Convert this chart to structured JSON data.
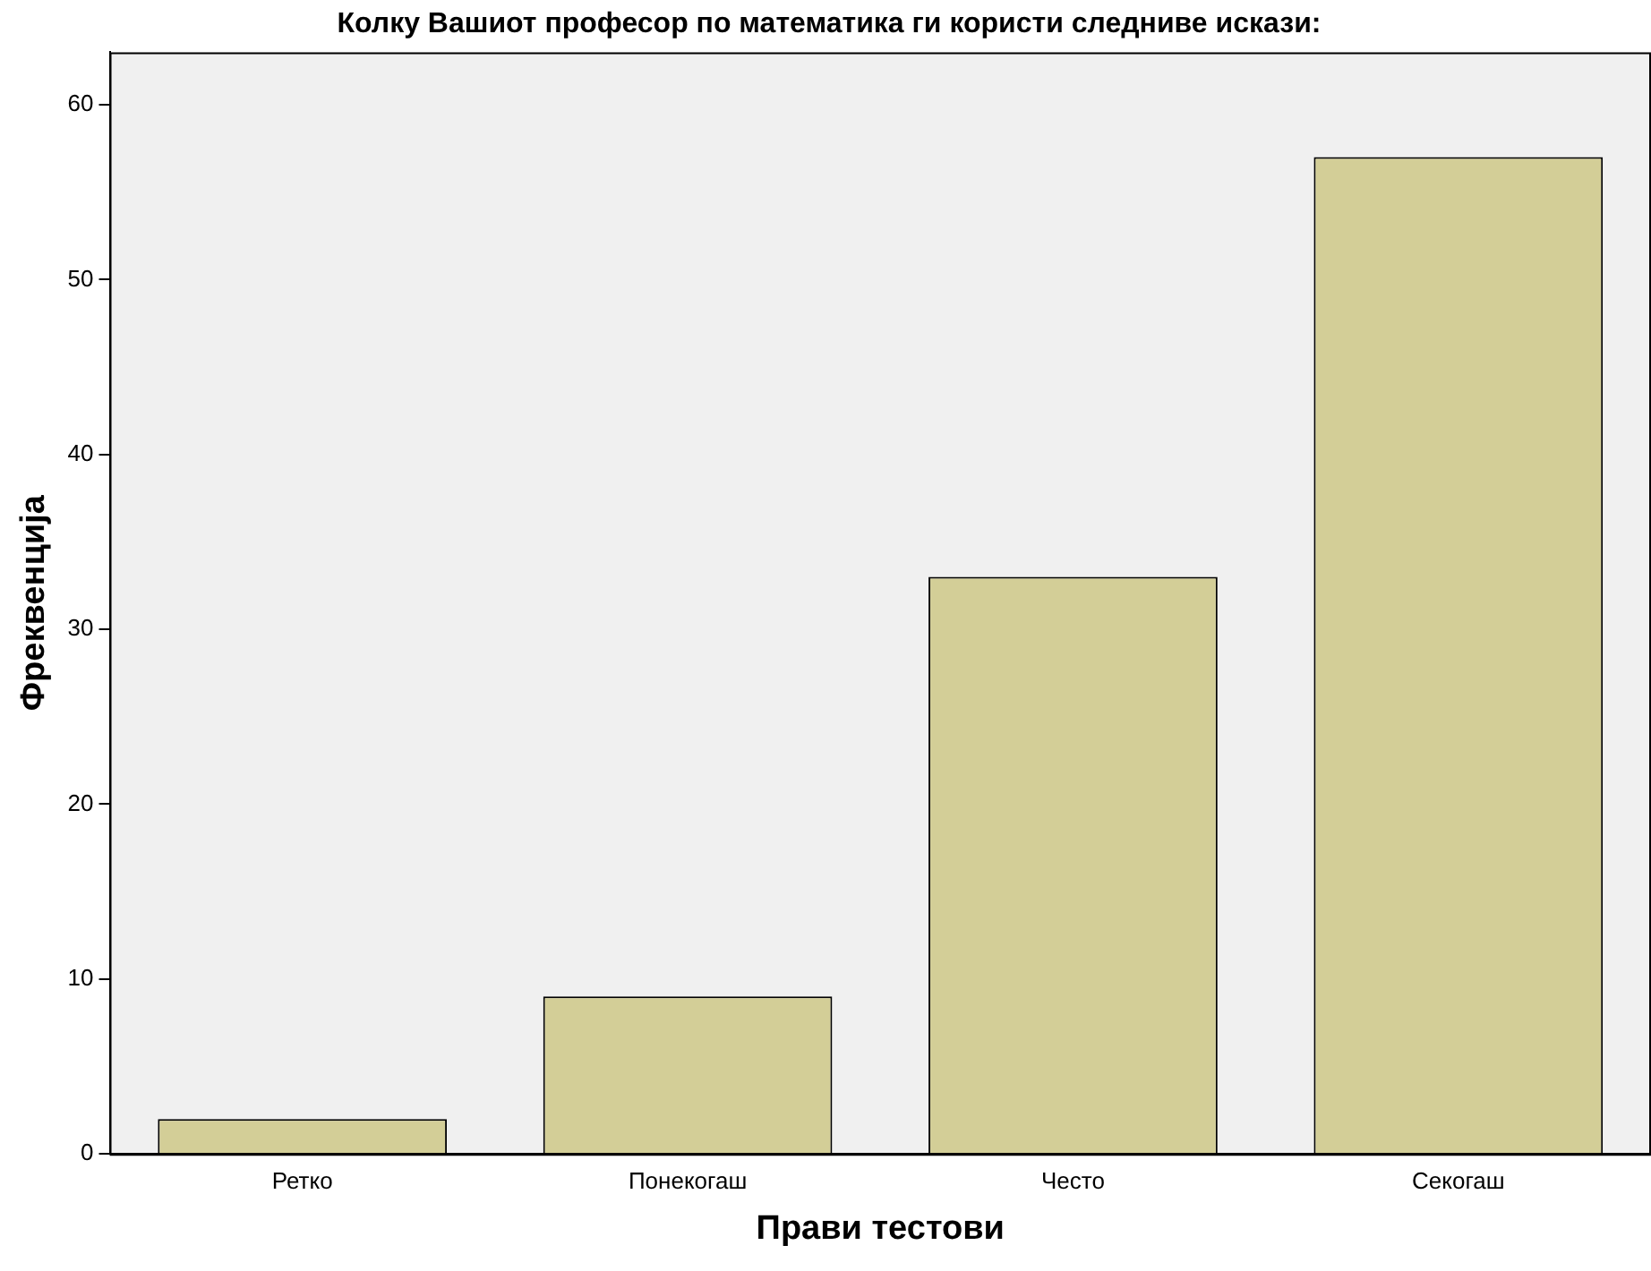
{
  "chart_data": {
    "type": "bar",
    "title": "Колку Вашиот професор по математика ги користи следниве искази:",
    "xlabel": "Прави тестови",
    "ylabel": "Фреквенција",
    "categories": [
      "Ретко",
      "Понекогаш",
      "Често",
      "Секогаш"
    ],
    "values": [
      2,
      9,
      33,
      57
    ],
    "color": "#d3ce97",
    "ylim": [
      0,
      63
    ],
    "yticks": [
      0,
      10,
      20,
      30,
      40,
      50,
      60
    ],
    "grid": false,
    "legend": false
  }
}
